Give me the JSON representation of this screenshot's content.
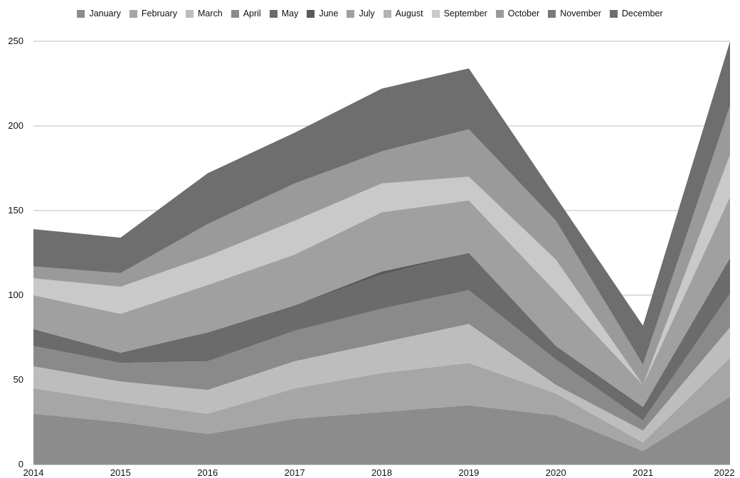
{
  "chart_data": {
    "type": "area",
    "stacked": true,
    "x": [
      "2014",
      "2015",
      "2016",
      "2017",
      "2018",
      "2019",
      "2020",
      "2021",
      "2022"
    ],
    "ylim": [
      0,
      250
    ],
    "yticks": [
      0,
      50,
      100,
      150,
      200,
      250
    ],
    "grid": true,
    "legend_position": "top",
    "series": [
      {
        "name": "January",
        "color": "#8c8c8c",
        "values": [
          30,
          25,
          18,
          27,
          31,
          35,
          29,
          8,
          40
        ]
      },
      {
        "name": "February",
        "color": "#a6a6a6",
        "values": [
          15,
          12,
          12,
          18,
          23,
          25,
          13,
          5,
          23
        ]
      },
      {
        "name": "March",
        "color": "#bdbdbd",
        "values": [
          13,
          12,
          14,
          16,
          18,
          23,
          5,
          7,
          18
        ]
      },
      {
        "name": "April",
        "color": "#8a8a8a",
        "values": [
          12,
          11,
          17,
          18,
          20,
          20,
          15,
          6,
          20
        ]
      },
      {
        "name": "May",
        "color": "#6b6b6b",
        "values": [
          10,
          6,
          17,
          15,
          20,
          22,
          8,
          8,
          21
        ]
      },
      {
        "name": "June",
        "color": "#5a5a5a",
        "values": [
          0,
          0,
          0,
          0,
          2,
          0,
          0,
          0,
          0
        ]
      },
      {
        "name": "July",
        "color": "#a0a0a0",
        "values": [
          20,
          23,
          28,
          30,
          35,
          31,
          32,
          13,
          36
        ]
      },
      {
        "name": "August",
        "color": "#b2b2b2",
        "values": [
          0,
          0,
          0,
          0,
          0,
          0,
          0,
          0,
          0
        ]
      },
      {
        "name": "September",
        "color": "#c9c9c9",
        "values": [
          10,
          16,
          17,
          20,
          17,
          14,
          19,
          0,
          25
        ]
      },
      {
        "name": "October",
        "color": "#9a9a9a",
        "values": [
          7,
          8,
          19,
          22,
          19,
          28,
          23,
          12,
          29
        ]
      },
      {
        "name": "November",
        "color": "#7a7a7a",
        "values": [
          0,
          0,
          0,
          0,
          0,
          0,
          0,
          0,
          0
        ]
      },
      {
        "name": "December",
        "color": "#6e6e6e",
        "values": [
          22,
          21,
          30,
          30,
          37,
          36,
          14,
          23,
          38
        ]
      }
    ]
  }
}
